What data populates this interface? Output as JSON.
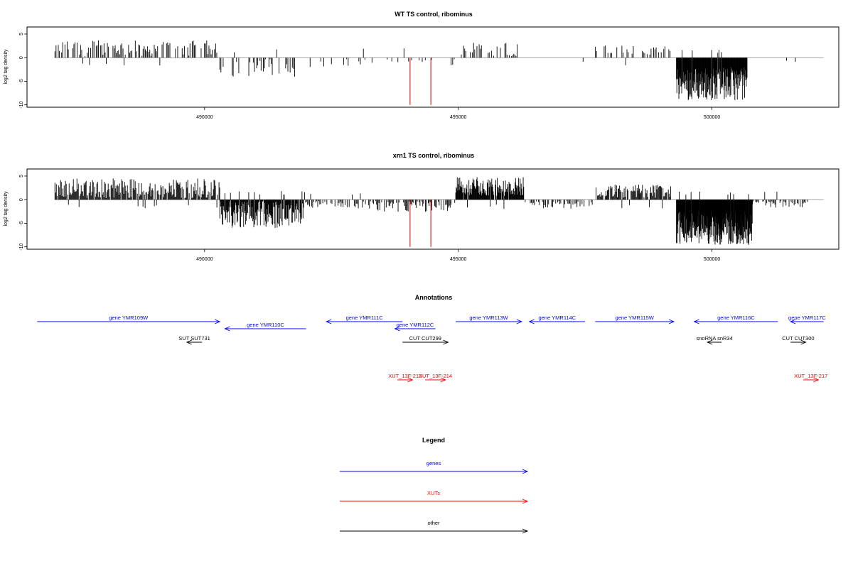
{
  "chart_data": [
    {
      "type": "bar",
      "title": "WT TS control, ribominus",
      "xlabel": "",
      "ylabel": "log2 tag density",
      "xlim": [
        486500,
        502500
      ],
      "ylim": [
        -10.5,
        6.5
      ],
      "xticks": [
        490000,
        495000,
        500000
      ],
      "xtick_labels": [
        "490000",
        "495000",
        "500000"
      ],
      "yticks": [
        5,
        0,
        -5,
        -10
      ],
      "ytick_labels": [
        "5",
        "0",
        "-5",
        "-10"
      ],
      "baseline_color": "#a0a0a0",
      "bar_color": "#000000",
      "highlight_color": "#cc0000",
      "highlight_bars": [
        {
          "x": 494050,
          "y": -10
        },
        {
          "x": 494460,
          "y": -10
        }
      ],
      "regions": [
        {
          "from": 487050,
          "to": 490300,
          "base": 2.0,
          "var": 1.7,
          "gap": 0.32,
          "step": 22
        },
        {
          "from": 490300,
          "to": 491900,
          "base": -2.2,
          "var": 2.0,
          "gap": 0.45,
          "step": 22
        },
        {
          "from": 491900,
          "to": 493300,
          "base": -1.0,
          "var": 1.0,
          "gap": 0.8,
          "step": 30
        },
        {
          "from": 493300,
          "to": 494950,
          "base": -0.8,
          "var": 0.9,
          "gap": 0.75,
          "step": 30
        },
        {
          "from": 494950,
          "to": 496200,
          "base": 1.8,
          "var": 1.5,
          "gap": 0.5,
          "step": 22
        },
        {
          "from": 496200,
          "to": 497700,
          "base": -0.6,
          "var": 0.6,
          "gap": 0.9,
          "step": 35
        },
        {
          "from": 497700,
          "to": 499200,
          "base": 1.6,
          "var": 1.0,
          "gap": 0.5,
          "step": 25
        },
        {
          "from": 499300,
          "to": 500700,
          "base": -5.5,
          "var": 3.5,
          "gap": 0.0,
          "step": 8
        },
        {
          "from": 500700,
          "to": 501900,
          "base": -0.4,
          "var": 0.5,
          "gap": 0.9,
          "step": 35
        }
      ]
    },
    {
      "type": "bar",
      "title": "xrn1 TS control, ribominus",
      "xlabel": "",
      "ylabel": "log2 tag density",
      "xlim": [
        486500,
        502500
      ],
      "ylim": [
        -10.5,
        6.5
      ],
      "xticks": [
        490000,
        495000,
        500000
      ],
      "xtick_labels": [
        "490000",
        "495000",
        "500000"
      ],
      "yticks": [
        5,
        0,
        -5,
        -10
      ],
      "ytick_labels": [
        "5",
        "0",
        "-5",
        "-10"
      ],
      "baseline_color": "#a0a0a0",
      "bar_color": "#000000",
      "highlight_color": "#cc0000",
      "highlight_bars": [
        {
          "x": 494050,
          "y": -10
        },
        {
          "x": 494460,
          "y": -10
        }
      ],
      "regions": [
        {
          "from": 487050,
          "to": 490300,
          "base": 2.2,
          "var": 2.3,
          "gap": 0.1,
          "step": 14
        },
        {
          "from": 490300,
          "to": 491950,
          "base": -3.0,
          "var": 3.0,
          "gap": 0.05,
          "step": 10
        },
        {
          "from": 491950,
          "to": 493400,
          "base": -0.9,
          "var": 1.0,
          "gap": 0.3,
          "step": 20
        },
        {
          "from": 493400,
          "to": 494950,
          "base": -1.2,
          "var": 1.4,
          "gap": 0.25,
          "step": 18
        },
        {
          "from": 494950,
          "to": 496300,
          "base": 2.8,
          "var": 2.0,
          "gap": 0.05,
          "step": 10
        },
        {
          "from": 496300,
          "to": 497700,
          "base": -1.0,
          "var": 0.9,
          "gap": 0.35,
          "step": 20
        },
        {
          "from": 497700,
          "to": 499200,
          "base": 1.8,
          "var": 1.4,
          "gap": 0.15,
          "step": 15
        },
        {
          "from": 499300,
          "to": 500800,
          "base": -6.0,
          "var": 3.6,
          "gap": 0.0,
          "step": 6
        },
        {
          "from": 500800,
          "to": 501900,
          "base": -0.8,
          "var": 0.9,
          "gap": 0.3,
          "step": 20
        }
      ]
    }
  ],
  "annotations": {
    "title": "Annotations",
    "features": [
      {
        "label": "gene YMR109W",
        "start": 486700,
        "end": 490300,
        "color": "#0000ff",
        "dir": "+"
      },
      {
        "label": "gene YMR110C",
        "start": 490400,
        "end": 492000,
        "color": "#0000ff",
        "dir": "-"
      },
      {
        "label": "gene YMR111C",
        "start": 492400,
        "end": 493900,
        "color": "#0000ff",
        "dir": "-"
      },
      {
        "label": "gene YMR112C",
        "start": 493750,
        "end": 494550,
        "color": "#0000ff",
        "dir": "-"
      },
      {
        "label": "gene YMR113W",
        "start": 494950,
        "end": 496250,
        "color": "#0000ff",
        "dir": "+"
      },
      {
        "label": "gene YMR114C",
        "start": 496400,
        "end": 497500,
        "color": "#0000ff",
        "dir": "-"
      },
      {
        "label": "gene YMR115W",
        "start": 497700,
        "end": 499250,
        "color": "#0000ff",
        "dir": "+"
      },
      {
        "label": "gene YMR116C",
        "start": 499650,
        "end": 501300,
        "color": "#0000ff",
        "dir": "-"
      },
      {
        "label": "gene YMR117C",
        "start": 501550,
        "end": 502200,
        "color": "#0000ff",
        "dir": "-"
      },
      {
        "label": "snoRNA snR34",
        "start": 500000,
        "end": 500100,
        "color": "#000000",
        "dir": "-"
      },
      {
        "label": "SUT SUT731",
        "start": 489650,
        "end": 489950,
        "color": "#000000",
        "dir": "-"
      },
      {
        "label": "CUT CUT299",
        "start": 493900,
        "end": 494800,
        "color": "#000000",
        "dir": "+"
      },
      {
        "label": "CUT CUT300",
        "start": 501550,
        "end": 501850,
        "color": "#000000",
        "dir": "+"
      },
      {
        "label": "XUT_13F-213",
        "start": 493800,
        "end": 494100,
        "color": "#ff0000",
        "dir": "+"
      },
      {
        "label": "XUT_13F-214",
        "start": 494350,
        "end": 494750,
        "color": "#ff0000",
        "dir": "+"
      },
      {
        "label": "XUT_13F-217",
        "start": 501800,
        "end": 502100,
        "color": "#ff0000",
        "dir": "+"
      }
    ]
  },
  "legend": {
    "title": "Legend",
    "items": [
      {
        "label": "genes",
        "color": "#0000ff"
      },
      {
        "label": "XUTs",
        "color": "#ff0000"
      },
      {
        "label": "other",
        "color": "#000000"
      }
    ]
  }
}
